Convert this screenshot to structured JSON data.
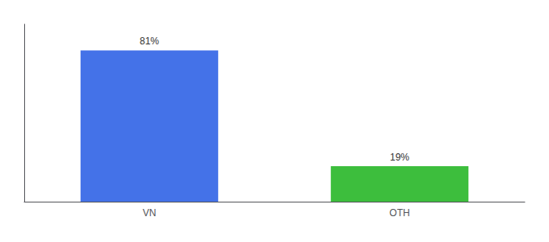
{
  "chart_data": {
    "type": "bar",
    "categories": [
      "VN",
      "OTH"
    ],
    "values": [
      81,
      19
    ],
    "value_labels": [
      "81%",
      "19%"
    ],
    "colors": [
      "#4472e8",
      "#3dbe3d"
    ],
    "ylim": [
      0,
      95
    ],
    "data_labels": true,
    "tick_labels": "x",
    "grid": false
  }
}
